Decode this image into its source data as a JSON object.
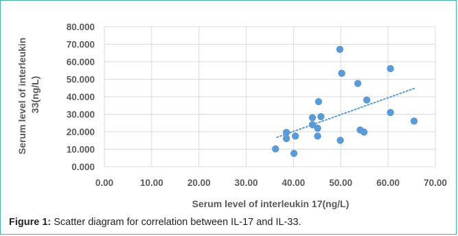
{
  "chart_data": {
    "type": "scatter",
    "xlabel": "Serum level of interleukin 17(ng/L)",
    "ylabel_lines": [
      "Serum level of interleukin",
      "33(ng/L)"
    ],
    "xlim": [
      0,
      70
    ],
    "ylim": [
      0,
      80
    ],
    "x_ticks": [
      "0.00",
      "10.00",
      "20.00",
      "30.00",
      "40.00",
      "50.00",
      "60.00",
      "70.00"
    ],
    "y_ticks": [
      "0.000",
      "10.000",
      "20.000",
      "30.000",
      "40.000",
      "50.000",
      "60.000",
      "70.000",
      "80.000"
    ],
    "grid": true,
    "trendline": {
      "style": "dotted",
      "x": [
        36.5,
        65.5
      ],
      "y": [
        16.8,
        44.7
      ]
    },
    "colors": {
      "point": "#5b9bd5",
      "trend": "#5b9bd5",
      "grid": "#d9d9d9",
      "axis_text": "#595959"
    },
    "points": [
      {
        "x": 36.2,
        "y": 10.2
      },
      {
        "x": 38.5,
        "y": 19.6
      },
      {
        "x": 38.5,
        "y": 16.1
      },
      {
        "x": 40.1,
        "y": 7.6
      },
      {
        "x": 40.4,
        "y": 17.5
      },
      {
        "x": 44.0,
        "y": 28.0
      },
      {
        "x": 44.0,
        "y": 24.0
      },
      {
        "x": 45.1,
        "y": 22.0
      },
      {
        "x": 45.1,
        "y": 17.5
      },
      {
        "x": 45.3,
        "y": 37.2
      },
      {
        "x": 45.8,
        "y": 28.6
      },
      {
        "x": 49.8,
        "y": 67.1
      },
      {
        "x": 50.2,
        "y": 53.4
      },
      {
        "x": 49.9,
        "y": 15.1
      },
      {
        "x": 53.6,
        "y": 47.6
      },
      {
        "x": 54.1,
        "y": 21.0
      },
      {
        "x": 54.9,
        "y": 19.8
      },
      {
        "x": 55.5,
        "y": 38.1
      },
      {
        "x": 60.5,
        "y": 56.1
      },
      {
        "x": 60.5,
        "y": 31.0
      },
      {
        "x": 65.5,
        "y": 26.1
      }
    ]
  },
  "caption": {
    "label": "Figure 1:",
    "text": " Scatter diagram for correlation between IL-17 and IL-33."
  }
}
